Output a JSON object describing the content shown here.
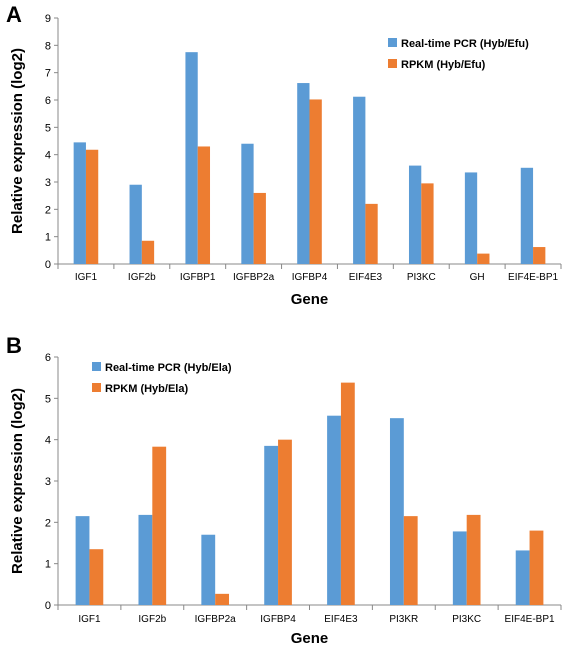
{
  "chart_data": [
    {
      "panel": "A",
      "type": "bar",
      "categories": [
        "IGF1",
        "IGF2b",
        "IGFBP1",
        "IGFBP2a",
        "IGFBP4",
        "EIF4E3",
        "PI3KC",
        "GH",
        "EIF4E-BP1"
      ],
      "series": [
        {
          "name": "Real-time PCR (Hyb/Efu)",
          "color": "#5B9BD5",
          "values": [
            4.45,
            2.9,
            7.75,
            4.4,
            6.62,
            6.12,
            3.6,
            3.35,
            3.52
          ]
        },
        {
          "name": "RPKM (Hyb/Efu)",
          "color": "#ED7D31",
          "values": [
            4.18,
            0.85,
            4.3,
            2.6,
            6.02,
            2.2,
            2.95,
            0.38,
            0.62
          ]
        }
      ],
      "ylim": [
        0,
        9
      ],
      "yticks": [
        0,
        1,
        2,
        3,
        4,
        5,
        6,
        7,
        8,
        9
      ],
      "xlabel": "Gene",
      "ylabel": "Relative expression (log2)",
      "legend_position": "top-right"
    },
    {
      "panel": "B",
      "type": "bar",
      "categories": [
        "IGF1",
        "IGF2b",
        "IGFBP2a",
        "IGFBP4",
        "EIF4E3",
        "PI3KR",
        "PI3KC",
        "EIF4E-BP1"
      ],
      "series": [
        {
          "name": "Real-time PCR (Hyb/Ela)",
          "color": "#5B9BD5",
          "values": [
            2.15,
            2.18,
            1.7,
            3.85,
            4.58,
            4.52,
            1.78,
            1.32
          ]
        },
        {
          "name": "RPKM (Hyb/Ela)",
          "color": "#ED7D31",
          "values": [
            1.35,
            3.83,
            0.27,
            4.0,
            5.38,
            2.15,
            2.18,
            1.8
          ]
        }
      ],
      "ylim": [
        0,
        6
      ],
      "yticks": [
        0,
        1,
        2,
        3,
        4,
        5,
        6
      ],
      "xlabel": "Gene",
      "ylabel": "Relative expression (log2)",
      "legend_position": "top-left"
    }
  ]
}
